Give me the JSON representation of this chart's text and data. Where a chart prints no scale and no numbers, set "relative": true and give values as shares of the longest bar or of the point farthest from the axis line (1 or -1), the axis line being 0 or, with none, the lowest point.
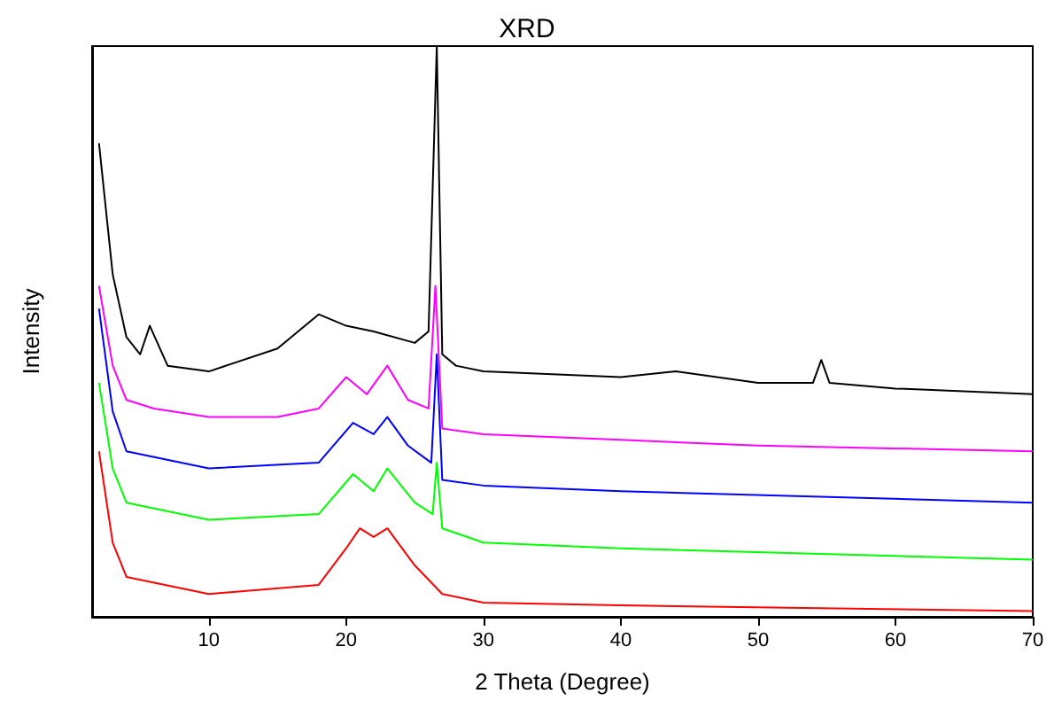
{
  "chart_data": {
    "type": "line",
    "title": "XRD",
    "xlabel": "2 Theta (Degree)",
    "ylabel": "Intensity",
    "relative": true,
    "xlim": [
      1.5,
      70
    ],
    "xticks": [
      10,
      20,
      30,
      40,
      50,
      60,
      70
    ],
    "grid": false,
    "marker": "none",
    "line_style": "solid",
    "series": [
      {
        "color": "#000000",
        "x": [
          2,
          3,
          4,
          5,
          5.7,
          7,
          10,
          15,
          18,
          20,
          22,
          25,
          26,
          26.6,
          27,
          28,
          30,
          40,
          44,
          50,
          54,
          54.6,
          55.2,
          60,
          70
        ],
        "values": [
          0.83,
          0.6,
          0.49,
          0.46,
          0.51,
          0.44,
          0.43,
          0.47,
          0.53,
          0.51,
          0.5,
          0.48,
          0.5,
          1.0,
          0.46,
          0.44,
          0.43,
          0.42,
          0.43,
          0.41,
          0.41,
          0.45,
          0.41,
          0.4,
          0.39
        ]
      },
      {
        "color": "#ff00ff",
        "x": [
          2,
          3,
          4,
          6,
          10,
          15,
          18,
          20,
          21.5,
          23,
          24.5,
          26,
          26.5,
          27,
          30,
          40,
          50,
          70
        ],
        "values": [
          0.58,
          0.44,
          0.38,
          0.365,
          0.35,
          0.35,
          0.365,
          0.42,
          0.39,
          0.44,
          0.38,
          0.365,
          0.58,
          0.33,
          0.32,
          0.31,
          0.3,
          0.29
        ]
      },
      {
        "color": "#0000ff",
        "x": [
          2,
          3,
          4,
          10,
          18,
          20.5,
          22,
          23,
          24.5,
          26.2,
          26.6,
          27,
          30,
          40,
          70
        ],
        "values": [
          0.54,
          0.36,
          0.29,
          0.26,
          0.27,
          0.34,
          0.32,
          0.35,
          0.3,
          0.27,
          0.46,
          0.24,
          0.23,
          0.22,
          0.2
        ]
      },
      {
        "color": "#00ff00",
        "x": [
          2,
          3,
          4,
          10,
          18,
          20.5,
          22,
          23,
          25,
          26.3,
          26.6,
          27,
          30,
          40,
          70
        ],
        "values": [
          0.41,
          0.26,
          0.2,
          0.17,
          0.18,
          0.25,
          0.22,
          0.26,
          0.2,
          0.18,
          0.27,
          0.155,
          0.13,
          0.12,
          0.1
        ]
      },
      {
        "color": "#ff0000",
        "x": [
          2,
          3,
          4,
          10,
          18,
          20,
          21,
          22,
          23,
          25,
          27,
          30,
          40,
          70
        ],
        "values": [
          0.29,
          0.13,
          0.07,
          0.04,
          0.056,
          0.12,
          0.155,
          0.14,
          0.155,
          0.09,
          0.04,
          0.025,
          0.02,
          0.01
        ]
      }
    ]
  }
}
